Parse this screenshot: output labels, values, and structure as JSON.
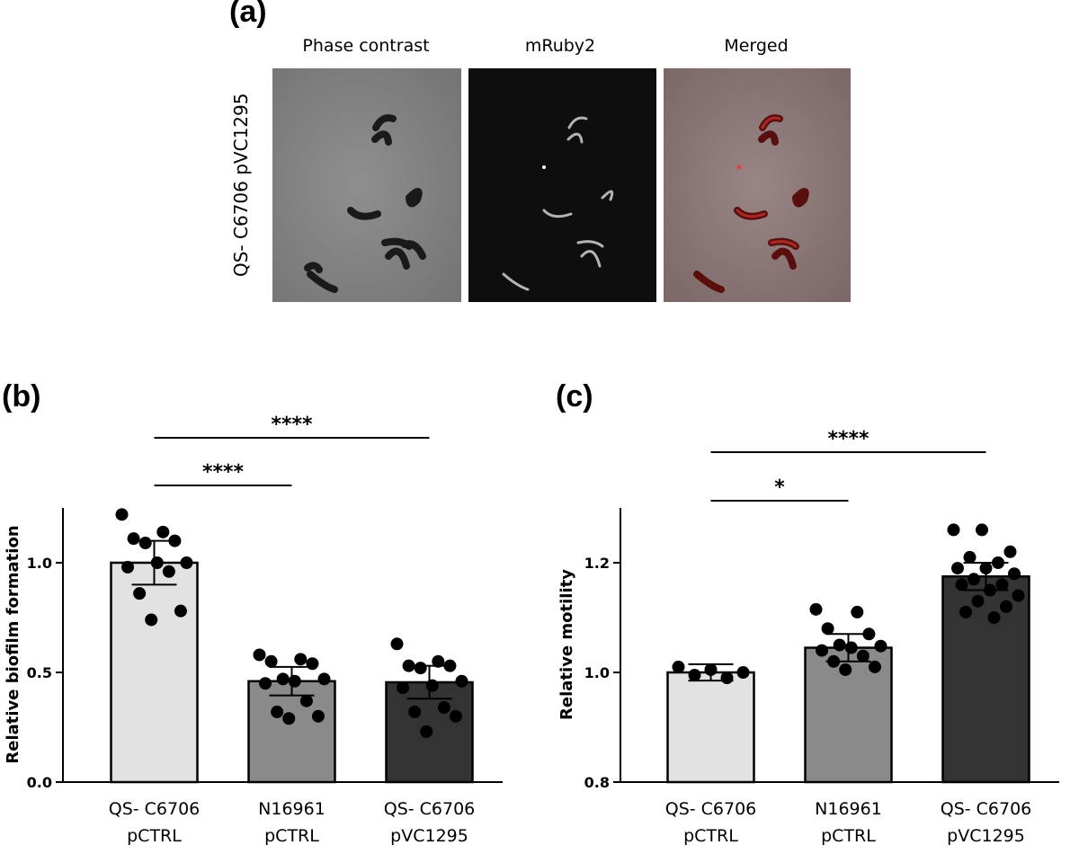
{
  "panel_a": {
    "label": "(a)",
    "image_titles": [
      "Phase contrast",
      "mRuby2",
      "Merged"
    ],
    "row_label": "QS- C6706 pVC1295"
  },
  "colors": {
    "bar_light": "#e2e2e2",
    "bar_mid": "#8a8a8a",
    "bar_dark": "#333333",
    "points": "#000000"
  },
  "chart_data": [
    {
      "panel_label": "(b)",
      "type": "bar",
      "ylabel": "Relative biofilm formation",
      "xlabel": "",
      "ylim": [
        0.0,
        1.25
      ],
      "yticks": [
        0.0,
        0.5,
        1.0
      ],
      "ytick_labels": [
        "0.0",
        "0.5",
        "1.0"
      ],
      "categories": [
        [
          "QS- C6706",
          "pCTRL"
        ],
        [
          "N16961",
          "pCTRL"
        ],
        [
          "QS- C6706",
          "pVC1295"
        ]
      ],
      "values": [
        1.0,
        0.46,
        0.455
      ],
      "errors": [
        0.1,
        0.065,
        0.075
      ],
      "points": [
        [
          1.22,
          1.14,
          1.11,
          1.1,
          1.09,
          1.0,
          1.0,
          0.98,
          0.96,
          0.86,
          0.78,
          0.74
        ],
        [
          0.58,
          0.56,
          0.55,
          0.54,
          0.47,
          0.47,
          0.46,
          0.45,
          0.37,
          0.32,
          0.3,
          0.29
        ],
        [
          0.63,
          0.55,
          0.53,
          0.53,
          0.52,
          0.46,
          0.44,
          0.43,
          0.34,
          0.32,
          0.3,
          0.23
        ]
      ],
      "significance": [
        {
          "from": 0,
          "to": 1,
          "label": "****"
        },
        {
          "from": 0,
          "to": 2,
          "label": "****"
        }
      ]
    },
    {
      "panel_label": "(c)",
      "type": "bar",
      "ylabel": "Relative motility",
      "xlabel": "",
      "ylim": [
        0.8,
        1.3
      ],
      "yticks": [
        0.8,
        1.0,
        1.2
      ],
      "ytick_labels": [
        "0.8",
        "1.0",
        "1.2"
      ],
      "categories": [
        [
          "QS- C6706",
          "pCTRL"
        ],
        [
          "N16961",
          "pCTRL"
        ],
        [
          "QS- C6706",
          "pVC1295"
        ]
      ],
      "values": [
        1.0,
        1.045,
        1.175
      ],
      "errors": [
        0.015,
        0.025,
        0.025
      ],
      "points": [
        [
          1.01,
          1.005,
          1.0,
          0.995,
          0.99
        ],
        [
          1.115,
          1.11,
          1.08,
          1.07,
          1.05,
          1.048,
          1.045,
          1.04,
          1.03,
          1.02,
          1.01,
          1.005
        ],
        [
          1.26,
          1.26,
          1.22,
          1.21,
          1.2,
          1.19,
          1.19,
          1.18,
          1.17,
          1.16,
          1.16,
          1.15,
          1.14,
          1.13,
          1.12,
          1.11,
          1.1
        ]
      ],
      "significance": [
        {
          "from": 0,
          "to": 1,
          "label": "*"
        },
        {
          "from": 0,
          "to": 2,
          "label": "****"
        }
      ]
    }
  ]
}
